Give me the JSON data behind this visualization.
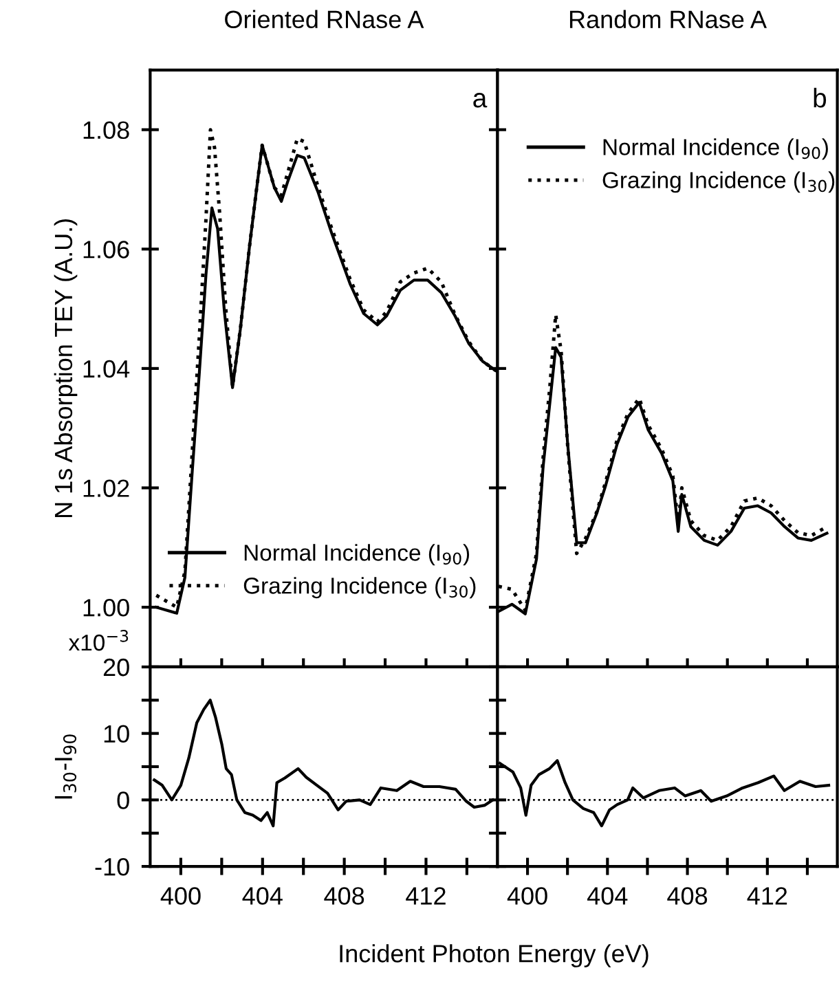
{
  "chart_data": [
    {
      "type": "line",
      "title": "Oriented RNase A",
      "ylabel": "N 1s Absorption TEY (A.U.)",
      "annotations": [
        "a"
      ],
      "legend": "bottom right",
      "tick_labels": "y",
      "xlim": [
        398.5,
        415.5
      ],
      "ylim": [
        0.99,
        1.09
      ],
      "xticks": [
        {
          "value": 400,
          "label": null
        },
        {
          "value": 402,
          "label": null
        },
        {
          "value": 404,
          "label": null
        },
        {
          "value": 406,
          "label": null
        },
        {
          "value": 408,
          "label": null
        },
        {
          "value": 410,
          "label": null
        },
        {
          "value": 412,
          "label": null
        },
        {
          "value": 414,
          "label": null
        }
      ],
      "yticks": [
        {
          "value": 1.0,
          "label": "1.00"
        },
        {
          "value": 1.02,
          "label": "1.02"
        },
        {
          "value": 1.04,
          "label": "1.04"
        },
        {
          "value": 1.06,
          "label": "1.06"
        },
        {
          "value": 1.08,
          "label": "1.08"
        }
      ],
      "series": [
        {
          "name": "Normal Incidence (I$_{90}$)",
          "color": "#000000",
          "line_style": "solid",
          "x": [
            398.8,
            399.8,
            400.2,
            400.56,
            400.9,
            401.23,
            401.52,
            401.8,
            402.13,
            402.53,
            402.91,
            403.36,
            403.69,
            403.98,
            404.25,
            404.58,
            404.92,
            405.25,
            405.7,
            406.04,
            406.71,
            407.38,
            408.28,
            408.95,
            409.62,
            410.07,
            410.74,
            411.41,
            412.08,
            412.75,
            413.42,
            414.09,
            414.77,
            415.44
          ],
          "values": [
            1.0,
            0.999,
            1.005,
            1.0228,
            1.039,
            1.0557,
            1.0669,
            1.0634,
            1.0496,
            1.0368,
            1.0465,
            1.0604,
            1.0696,
            1.0774,
            1.0742,
            1.0703,
            1.068,
            1.0715,
            1.0757,
            1.0753,
            1.0696,
            1.0627,
            1.0542,
            1.0492,
            1.0473,
            1.0488,
            1.0531,
            1.0548,
            1.0548,
            1.0527,
            1.0488,
            1.0442,
            1.0412,
            1.0396
          ]
        },
        {
          "name": "Grazing Incidence (I$_{30}$)",
          "color": "#000000",
          "line_style": "dotted",
          "x": [
            398.8,
            399.8,
            400.2,
            400.56,
            400.9,
            401.23,
            401.45,
            401.65,
            401.9,
            402.2,
            402.53,
            402.91,
            403.36,
            403.69,
            403.98,
            404.25,
            404.58,
            404.92,
            405.25,
            405.7,
            406.04,
            406.71,
            407.38,
            408.28,
            408.95,
            409.62,
            410.07,
            410.74,
            411.41,
            412.08,
            412.75,
            413.42,
            414.09,
            414.77,
            415.44
          ],
          "values": [
            1.002,
            1.0,
            1.006,
            1.026,
            1.045,
            1.065,
            1.08,
            1.077,
            1.066,
            1.05,
            1.037,
            1.0465,
            1.0604,
            1.0696,
            1.0774,
            1.0742,
            1.0703,
            1.069,
            1.073,
            1.0785,
            1.078,
            1.0705,
            1.0635,
            1.055,
            1.0498,
            1.0478,
            1.0495,
            1.0545,
            1.056,
            1.0568,
            1.0545,
            1.049,
            1.0445,
            1.0412,
            1.0396
          ]
        }
      ]
    },
    {
      "type": "line",
      "title": "Random RNase A",
      "annotations": [
        "b"
      ],
      "legend": "top left",
      "tick_labels": false,
      "xlim": [
        398.5,
        415.5
      ],
      "ylim": [
        0.99,
        1.09
      ],
      "xticks": [
        {
          "value": 400,
          "label": null
        },
        {
          "value": 402,
          "label": null
        },
        {
          "value": 404,
          "label": null
        },
        {
          "value": 406,
          "label": null
        },
        {
          "value": 408,
          "label": null
        },
        {
          "value": 410,
          "label": null
        },
        {
          "value": 412,
          "label": null
        },
        {
          "value": 414,
          "label": null
        }
      ],
      "yticks": [
        {
          "value": 1.0,
          "label": null
        },
        {
          "value": 1.02,
          "label": null
        },
        {
          "value": 1.04,
          "label": null
        },
        {
          "value": 1.06,
          "label": null
        },
        {
          "value": 1.08,
          "label": null
        }
      ],
      "series": [
        {
          "name": "Normal Incidence (I$_{90}$)",
          "color": "#000000",
          "line_style": "solid",
          "x": [
            398.55,
            399.22,
            399.89,
            400.45,
            400.78,
            401.12,
            401.41,
            401.68,
            402.01,
            402.46,
            402.9,
            403.47,
            403.91,
            404.48,
            405.03,
            405.59,
            406.04,
            406.71,
            407.27,
            407.54,
            407.72,
            408.17,
            408.84,
            409.51,
            410.18,
            410.85,
            411.52,
            412.19,
            412.86,
            413.53,
            414.2,
            414.98
          ],
          "values": [
            0.9993,
            1.0005,
            0.9989,
            1.0081,
            1.0235,
            1.0343,
            1.0435,
            1.0419,
            1.0273,
            1.0108,
            1.0108,
            1.0158,
            1.0204,
            1.0273,
            1.0319,
            1.0343,
            1.0297,
            1.0258,
            1.0212,
            1.0127,
            1.0189,
            1.0135,
            1.0112,
            1.0104,
            1.0127,
            1.0166,
            1.017,
            1.0158,
            1.0135,
            1.0116,
            1.0112,
            1.0124
          ]
        },
        {
          "name": "Grazing Incidence (I$_{30}$)",
          "color": "#000000",
          "line_style": "dotted",
          "x": [
            398.55,
            399.22,
            399.89,
            400.45,
            400.78,
            401.12,
            401.41,
            401.68,
            402.01,
            402.46,
            402.9,
            403.47,
            403.91,
            404.48,
            405.03,
            405.59,
            406.04,
            406.71,
            407.27,
            407.54,
            407.72,
            408.17,
            408.84,
            409.51,
            410.18,
            410.85,
            411.52,
            412.19,
            412.86,
            413.53,
            414.2,
            414.98
          ],
          "values": [
            1.0035,
            1.003,
            0.9995,
            1.009,
            1.025,
            1.037,
            1.049,
            1.043,
            1.027,
            1.009,
            1.0115,
            1.016,
            1.021,
            1.028,
            1.0325,
            1.035,
            1.0305,
            1.0265,
            1.022,
            1.014,
            1.02,
            1.0145,
            1.012,
            1.0112,
            1.0135,
            1.0178,
            1.0183,
            1.017,
            1.0145,
            1.0125,
            1.012,
            1.0135
          ]
        }
      ]
    },
    {
      "type": "line",
      "ylabel": "I$_{30}$-I$_{90}$",
      "xlabel": "Incident Photon Energy (eV)",
      "tick_labels": "xy",
      "annotations": [
        "x10$^{−3}$"
      ],
      "xlim": [
        398.5,
        415.5
      ],
      "ylim": [
        -10,
        20
      ],
      "xticks": [
        400,
        {
          "value": 402,
          "label": null
        },
        404,
        {
          "value": 406,
          "label": null
        },
        408,
        {
          "value": 410,
          "label": null
        },
        412,
        {
          "value": 414,
          "label": null
        }
      ],
      "yticks": [
        -10,
        {
          "value": -5,
          "label": null
        },
        0,
        {
          "value": 5,
          "label": null
        },
        10,
        {
          "value": 15,
          "label": null
        },
        20
      ],
      "ref_lines": [
        {
          "axis": "y",
          "value": 0,
          "line_style": "dotted",
          "color": "#000000"
        }
      ],
      "series": [
        {
          "color": "#000000",
          "line_style": "solid",
          "x": [
            398.7,
            399.09,
            399.56,
            400.0,
            400.39,
            400.78,
            401.12,
            401.44,
            401.7,
            402.01,
            402.22,
            402.48,
            402.74,
            403.13,
            403.52,
            403.92,
            404.23,
            404.52,
            404.7,
            405.09,
            405.74,
            406.14,
            406.66,
            407.18,
            407.7,
            408.09,
            408.75,
            409.27,
            409.79,
            410.57,
            411.23,
            411.88,
            412.66,
            413.45,
            413.97,
            414.36,
            414.88,
            415.27
          ],
          "values": [
            3.0,
            2.2,
            0,
            2.2,
            6.3,
            11.6,
            13.6,
            15.0,
            12.4,
            8.3,
            4.7,
            3.8,
            0,
            -1.9,
            -2.3,
            -3.1,
            -1.9,
            -3.9,
            2.6,
            3.3,
            4.7,
            3.4,
            2.2,
            1.0,
            -1.5,
            -0.2,
            0,
            -0.7,
            1.8,
            1.4,
            2.8,
            2.0,
            2.0,
            1.6,
            -0.2,
            -1.1,
            -0.8,
            0
          ]
        }
      ]
    },
    {
      "type": "line",
      "tick_labels": "x",
      "xlim": [
        398.5,
        415.5
      ],
      "ylim": [
        -10,
        20
      ],
      "xticks": [
        400,
        {
          "value": 402,
          "label": null
        },
        404,
        {
          "value": 406,
          "label": null
        },
        408,
        {
          "value": 410,
          "label": null
        },
        412,
        {
          "value": 414,
          "label": null
        }
      ],
      "yticks": [
        {
          "value": -10,
          "label": null
        },
        {
          "value": -5,
          "label": null
        },
        {
          "value": 0,
          "label": null
        },
        {
          "value": 5,
          "label": null
        },
        {
          "value": 10,
          "label": null
        },
        {
          "value": 15,
          "label": null
        },
        {
          "value": 20,
          "label": null
        }
      ],
      "ref_lines": [
        {
          "axis": "y",
          "value": 0,
          "line_style": "dotted",
          "color": "#000000"
        }
      ],
      "series": [
        {
          "color": "#000000",
          "line_style": "solid",
          "x": [
            398.62,
            399.27,
            399.66,
            399.92,
            400.18,
            400.57,
            401.1,
            401.49,
            401.88,
            402.27,
            402.79,
            403.31,
            403.71,
            404.1,
            404.49,
            405.01,
            405.27,
            405.8,
            406.58,
            407.36,
            407.89,
            408.67,
            409.19,
            409.97,
            410.76,
            411.54,
            412.32,
            412.85,
            413.63,
            414.41,
            415.07
          ],
          "values": [
            5.5,
            4.2,
            1.8,
            -2.3,
            2.2,
            3.8,
            4.7,
            5.9,
            2.6,
            0,
            -1.3,
            -1.9,
            -3.9,
            -1.5,
            -0.7,
            0,
            1.8,
            0.3,
            1.4,
            1.8,
            0.6,
            1.4,
            -0.2,
            0.6,
            1.8,
            2.6,
            3.6,
            1.4,
            2.8,
            2.0,
            2.2
          ]
        }
      ]
    }
  ]
}
